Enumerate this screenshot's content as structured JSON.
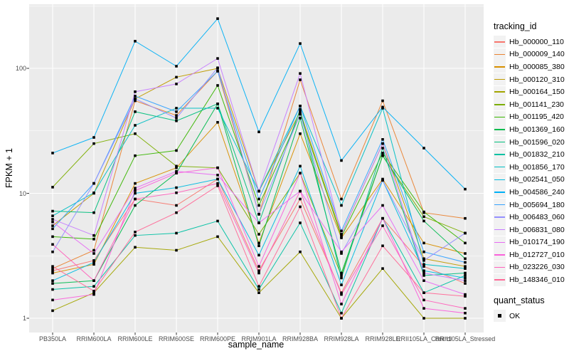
{
  "chart_data": {
    "type": "line",
    "title": "",
    "xlabel": "sample_name",
    "ylabel": "FPKM + 1",
    "x_categories": [
      "PB350LA",
      "RRIM600LA",
      "RRIM600LE",
      "RRIM600SE",
      "RRIM600PE",
      "RRIM901LA",
      "RRIM928BA",
      "RRIM928LA",
      "RRIM928LE",
      "RRII105LA_Control",
      "RRII105LA_Stressed"
    ],
    "y_ticks": [
      "1",
      "10",
      "100"
    ],
    "y_tick_values": [
      1,
      10,
      100
    ],
    "y_minor_values": [
      3.1623,
      31.623,
      316.23
    ],
    "y_scale": "log10",
    "ylim": [
      0.77,
      326
    ],
    "grid": "on",
    "legend_position": "right",
    "legend_title": "tracking_id",
    "point_shape": "filled-square",
    "series": [
      {
        "name": "Hb_000000_110",
        "color": "#F8766D",
        "values": [
          2.4,
          2.9,
          9.0,
          8.0,
          13,
          2.4,
          9.0,
          1.6,
          6.3,
          2.6,
          1.9
        ]
      },
      {
        "name": "Hb_000009_140",
        "color": "#EA8331",
        "values": [
          2.5,
          3.5,
          55,
          42,
          95,
          6.8,
          81,
          9.0,
          55,
          7.0,
          6.3
        ]
      },
      {
        "name": "Hb_000085_380",
        "color": "#D89000",
        "values": [
          2.3,
          2.7,
          12,
          16,
          37,
          4.0,
          30,
          4.4,
          13,
          4.0,
          3.3
        ]
      },
      {
        "name": "Hb_000120_310",
        "color": "#C09B00",
        "values": [
          5.5,
          10,
          57,
          85,
          100,
          10.4,
          45,
          4.7,
          25,
          3.0,
          2.6
        ]
      },
      {
        "name": "Hb_000164_150",
        "color": "#A3A500",
        "values": [
          1.15,
          1.6,
          3.7,
          3.5,
          4.5,
          1.6,
          3.4,
          1.0,
          2.5,
          1.0,
          1.0
        ]
      },
      {
        "name": "Hb_001141_230",
        "color": "#7CAE00",
        "values": [
          11.2,
          25,
          30,
          16.5,
          16,
          4.7,
          14.5,
          2.2,
          20,
          6.5,
          4.8
        ]
      },
      {
        "name": "Hb_001195_420",
        "color": "#39B600",
        "values": [
          4.5,
          4.3,
          20,
          22,
          73,
          8.0,
          43,
          4.5,
          21,
          7.1,
          4.0
        ]
      },
      {
        "name": "Hb_001369_160",
        "color": "#00BB4E",
        "values": [
          1.9,
          2.0,
          8.0,
          14.5,
          52,
          3.8,
          40,
          2.3,
          20,
          6.0,
          3.0
        ]
      },
      {
        "name": "Hb_001596_020",
        "color": "#00BF7D",
        "values": [
          7.2,
          7.0,
          45,
          38,
          52,
          5.8,
          47,
          2.1,
          23,
          2.2,
          2.3
        ]
      },
      {
        "name": "Hb_001832_210",
        "color": "#00C1A3",
        "values": [
          1.7,
          1.8,
          4.6,
          4.8,
          6.0,
          1.7,
          5.8,
          1.1,
          6.3,
          1.6,
          2.2
        ]
      },
      {
        "name": "Hb_001856_170",
        "color": "#00BFC4",
        "values": [
          6.6,
          10.1,
          35,
          48,
          48,
          10.4,
          50,
          8.0,
          48,
          2.7,
          2.5
        ]
      },
      {
        "name": "Hb_002541_050",
        "color": "#00BAE0",
        "values": [
          2.0,
          2.8,
          10,
          11.1,
          13,
          3.2,
          16.5,
          1.85,
          12.7,
          2.4,
          2.1
        ]
      },
      {
        "name": "Hb_004586_240",
        "color": "#00B0F6",
        "values": [
          21,
          28,
          165,
          104,
          250,
          31,
          158,
          18.3,
          49,
          23,
          10.8
        ]
      },
      {
        "name": "Hb_005694_180",
        "color": "#35A2FF",
        "values": [
          5.2,
          12,
          60,
          45,
          95,
          9.0,
          50,
          5.0,
          27,
          3.4,
          2.8
        ]
      },
      {
        "name": "Hb_006483_060",
        "color": "#9590FF",
        "values": [
          3.4,
          12,
          57,
          40,
          101,
          6.8,
          43,
          3.3,
          12.7,
          2.9,
          4.8
        ]
      },
      {
        "name": "Hb_006831_080",
        "color": "#C77CFF",
        "values": [
          6.2,
          4.6,
          65,
          75,
          120,
          10.4,
          91,
          4.7,
          25,
          2.3,
          2.0
        ]
      },
      {
        "name": "Hb_010174_190",
        "color": "#E76BF3",
        "values": [
          5.9,
          3.3,
          11,
          15,
          14,
          5.8,
          10.4,
          3.4,
          8.0,
          2.0,
          1.55
        ]
      },
      {
        "name": "Hb_012727_010",
        "color": "#FA62DB",
        "values": [
          1.4,
          1.55,
          10.5,
          14.5,
          16,
          2.6,
          14.5,
          1.3,
          6.3,
          1.2,
          1.1
        ]
      },
      {
        "name": "Hb_023226_030",
        "color": "#FF62BC",
        "values": [
          3.9,
          2.0,
          9.0,
          10.1,
          12,
          2.3,
          10.4,
          1.55,
          5.5,
          1.4,
          1.2
        ]
      },
      {
        "name": "Hb_148346_010",
        "color": "#FF6A98",
        "values": [
          2.6,
          1.65,
          4.9,
          7.0,
          11.5,
          1.8,
          7.8,
          1.0,
          3.8,
          1.6,
          1.5
        ]
      }
    ],
    "quant_status": {
      "title": "quant_status",
      "items": [
        {
          "label": "OK",
          "shape": "filled-square",
          "color": "#000000"
        }
      ]
    }
  },
  "style_colors": {
    "panel_background": "#EBEBEB",
    "grid_line": "#FFFFFF",
    "axis_text": "#4D4D4D",
    "tick_mark": "#333333",
    "legend_key_background": "#F2F2F2",
    "point_color": "#000000"
  }
}
